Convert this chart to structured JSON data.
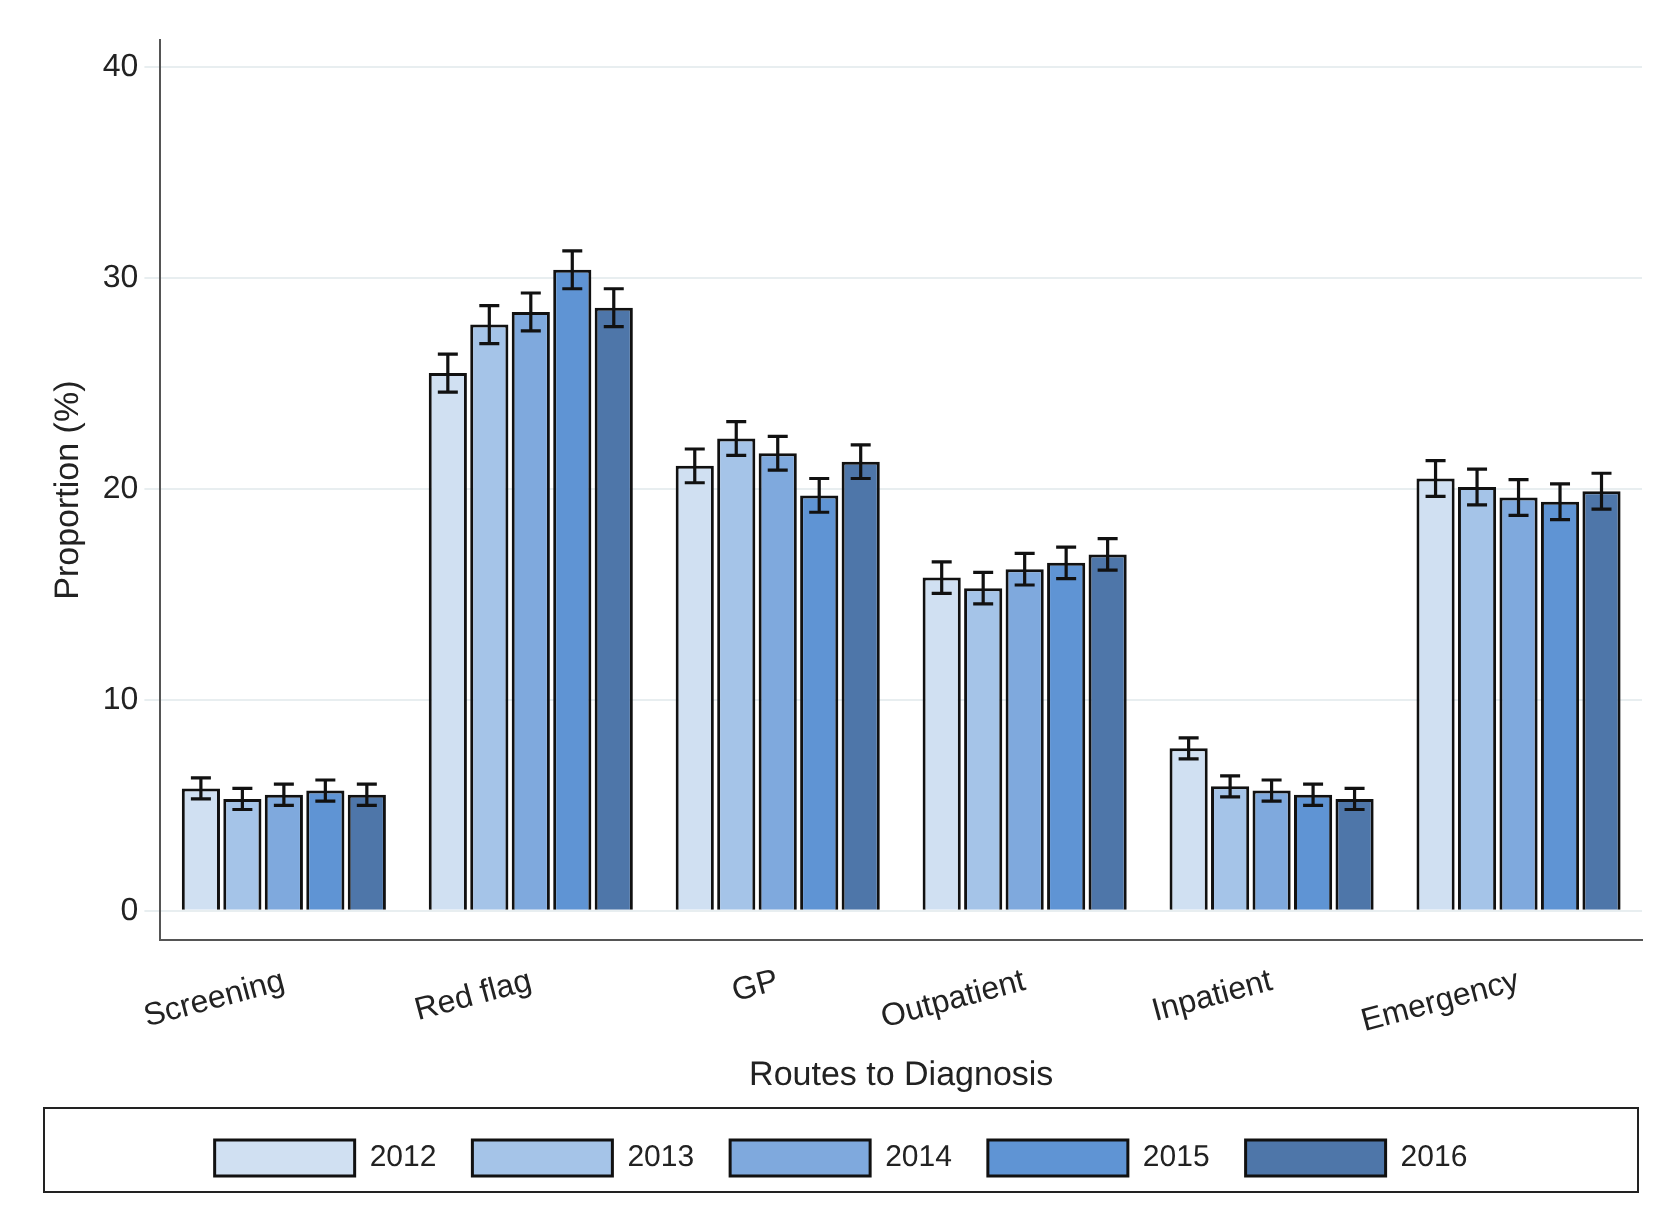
{
  "chart_data": {
    "type": "bar",
    "xlabel": "Routes to Diagnosis",
    "ylabel": "Proportion (%)",
    "categories": [
      "Screening",
      "Red flag",
      "GP",
      "Outpatient",
      "Inpatient",
      "Emergency"
    ],
    "series": [
      {
        "name": "2012",
        "color": "#d0e0f2",
        "values": [
          5.8,
          25.5,
          21.1,
          15.8,
          7.7,
          20.5
        ],
        "errors": [
          0.5,
          0.9,
          0.8,
          0.75,
          0.5,
          0.85
        ]
      },
      {
        "name": "2013",
        "color": "#a5c4e8",
        "values": [
          5.3,
          27.8,
          22.4,
          15.3,
          5.9,
          20.1
        ],
        "errors": [
          0.5,
          0.9,
          0.8,
          0.75,
          0.5,
          0.85
        ]
      },
      {
        "name": "2014",
        "color": "#7fa9dd",
        "values": [
          5.5,
          28.4,
          21.7,
          16.2,
          5.7,
          19.6
        ],
        "errors": [
          0.5,
          0.9,
          0.8,
          0.75,
          0.5,
          0.85
        ]
      },
      {
        "name": "2015",
        "color": "#5f94d4",
        "values": [
          5.7,
          30.4,
          19.7,
          16.5,
          5.5,
          19.4
        ],
        "errors": [
          0.5,
          0.9,
          0.8,
          0.75,
          0.5,
          0.85
        ]
      },
      {
        "name": "2016",
        "color": "#4e76a9",
        "values": [
          5.5,
          28.6,
          21.3,
          16.9,
          5.3,
          19.9
        ],
        "errors": [
          0.5,
          0.9,
          0.8,
          0.75,
          0.5,
          0.85
        ]
      }
    ],
    "ylim": [
      -1.4,
      41.3
    ],
    "yticks": [
      0,
      10,
      20,
      30,
      40
    ],
    "grid": "y",
    "legend": "bottom"
  }
}
